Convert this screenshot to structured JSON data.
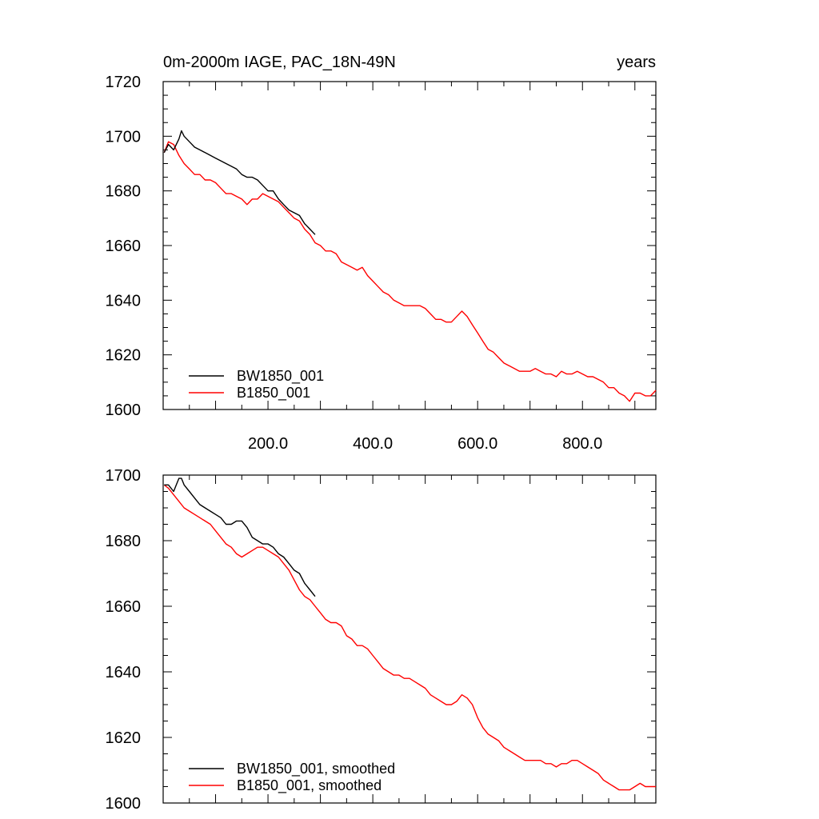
{
  "chart_data": [
    {
      "type": "line",
      "title": "0m-2000m IAGE, PAC_18N-49N",
      "units": "years",
      "xlim": [
        0,
        940
      ],
      "ylim": [
        1600,
        1720
      ],
      "xticks": [
        200,
        400,
        600,
        800
      ],
      "xtick_labels": [
        "200.0",
        "400.0",
        "600.0",
        "800.0"
      ],
      "yticks": [
        1600,
        1620,
        1640,
        1660,
        1680,
        1700,
        1720
      ],
      "ytick_labels": [
        "1600",
        "1620",
        "1640",
        "1660",
        "1680",
        "1700",
        "1720"
      ],
      "legend_position": "bottom-left",
      "series": [
        {
          "name": "BW1850_001",
          "color": "#000000",
          "x": [
            2,
            10,
            20,
            30,
            35,
            40,
            50,
            60,
            70,
            80,
            90,
            100,
            110,
            120,
            130,
            140,
            150,
            160,
            170,
            180,
            190,
            200,
            210,
            220,
            230,
            240,
            250,
            260,
            270,
            280,
            290
          ],
          "y": [
            1694,
            1697,
            1695,
            1699,
            1702,
            1700,
            1698,
            1696,
            1695,
            1694,
            1693,
            1692,
            1691,
            1690,
            1689,
            1688,
            1686,
            1685,
            1685,
            1684,
            1682,
            1680,
            1680,
            1677,
            1675,
            1673,
            1672,
            1671,
            1668,
            1666,
            1664
          ]
        },
        {
          "name": "B1850_001",
          "color": "#ff0000",
          "x": [
            2,
            10,
            20,
            30,
            40,
            50,
            60,
            70,
            80,
            90,
            100,
            110,
            120,
            130,
            140,
            150,
            160,
            170,
            180,
            190,
            200,
            210,
            220,
            230,
            240,
            250,
            260,
            270,
            280,
            290,
            300,
            310,
            320,
            330,
            340,
            350,
            360,
            370,
            380,
            390,
            400,
            410,
            420,
            430,
            440,
            450,
            460,
            470,
            480,
            490,
            500,
            510,
            520,
            530,
            540,
            550,
            560,
            570,
            580,
            590,
            600,
            610,
            620,
            630,
            640,
            650,
            660,
            670,
            680,
            690,
            700,
            710,
            720,
            730,
            740,
            750,
            760,
            770,
            780,
            790,
            800,
            810,
            820,
            830,
            840,
            850,
            860,
            870,
            880,
            890,
            900,
            910,
            920,
            930,
            940
          ],
          "y": [
            1694,
            1698,
            1697,
            1693,
            1690,
            1688,
            1686,
            1686,
            1684,
            1684,
            1683,
            1681,
            1679,
            1679,
            1678,
            1677,
            1675,
            1677,
            1677,
            1679,
            1678,
            1677,
            1676,
            1674,
            1672,
            1670,
            1669,
            1666,
            1664,
            1661,
            1660,
            1658,
            1658,
            1657,
            1654,
            1653,
            1652,
            1651,
            1652,
            1649,
            1647,
            1645,
            1643,
            1642,
            1640,
            1639,
            1638,
            1638,
            1638,
            1638,
            1637,
            1635,
            1633,
            1633,
            1632,
            1632,
            1634,
            1636,
            1634,
            1631,
            1628,
            1625,
            1622,
            1621,
            1619,
            1617,
            1616,
            1615,
            1614,
            1614,
            1614,
            1615,
            1614,
            1613,
            1613,
            1612,
            1614,
            1613,
            1613,
            1614,
            1613,
            1612,
            1612,
            1611,
            1610,
            1608,
            1608,
            1606,
            1605,
            1603,
            1606,
            1606,
            1605,
            1605,
            1607
          ]
        }
      ]
    },
    {
      "type": "line",
      "xlim": [
        0,
        940
      ],
      "ylim": [
        1600,
        1700
      ],
      "yticks": [
        1600,
        1620,
        1640,
        1660,
        1680,
        1700
      ],
      "ytick_labels": [
        "1600",
        "1620",
        "1640",
        "1660",
        "1680",
        "1700"
      ],
      "legend_position": "bottom-left",
      "series": [
        {
          "name": "BW1850_001, smoothed",
          "color": "#000000",
          "x": [
            2,
            10,
            20,
            25,
            30,
            35,
            40,
            50,
            60,
            70,
            80,
            90,
            100,
            110,
            120,
            130,
            140,
            150,
            160,
            170,
            180,
            190,
            200,
            210,
            220,
            230,
            240,
            250,
            260,
            270,
            280,
            290
          ],
          "y": [
            1697,
            1697,
            1695,
            1697,
            1699,
            1699,
            1697,
            1695,
            1693,
            1691,
            1690,
            1689,
            1688,
            1687,
            1685,
            1685,
            1686,
            1686,
            1684,
            1681,
            1680,
            1679,
            1679,
            1678,
            1676,
            1675,
            1673,
            1671,
            1670,
            1667,
            1665,
            1663
          ]
        },
        {
          "name": "B1850_001, smoothed",
          "color": "#ff0000",
          "x": [
            2,
            10,
            20,
            30,
            40,
            50,
            60,
            70,
            80,
            90,
            100,
            110,
            120,
            130,
            140,
            150,
            160,
            170,
            180,
            190,
            200,
            210,
            220,
            230,
            240,
            250,
            260,
            270,
            280,
            290,
            300,
            310,
            320,
            330,
            340,
            350,
            360,
            370,
            380,
            390,
            400,
            410,
            420,
            430,
            440,
            450,
            460,
            470,
            480,
            490,
            500,
            510,
            520,
            530,
            540,
            550,
            560,
            570,
            580,
            590,
            600,
            610,
            620,
            630,
            640,
            650,
            660,
            670,
            680,
            690,
            700,
            710,
            720,
            730,
            740,
            750,
            760,
            770,
            780,
            790,
            800,
            810,
            820,
            830,
            840,
            850,
            860,
            870,
            880,
            890,
            900,
            910,
            920,
            930,
            940
          ],
          "y": [
            1697,
            1696,
            1694,
            1692,
            1690,
            1689,
            1688,
            1687,
            1686,
            1685,
            1683,
            1681,
            1679,
            1678,
            1676,
            1675,
            1676,
            1677,
            1678,
            1678,
            1677,
            1676,
            1675,
            1673,
            1671,
            1668,
            1665,
            1663,
            1662,
            1660,
            1658,
            1656,
            1655,
            1655,
            1654,
            1651,
            1650,
            1648,
            1648,
            1647,
            1645,
            1643,
            1641,
            1640,
            1639,
            1639,
            1638,
            1638,
            1637,
            1636,
            1635,
            1633,
            1632,
            1631,
            1630,
            1630,
            1631,
            1633,
            1632,
            1630,
            1626,
            1623,
            1621,
            1620,
            1619,
            1617,
            1616,
            1615,
            1614,
            1613,
            1613,
            1613,
            1613,
            1612,
            1612,
            1611,
            1612,
            1612,
            1613,
            1613,
            1612,
            1611,
            1610,
            1609,
            1607,
            1606,
            1605,
            1604,
            1604,
            1604,
            1605,
            1606,
            1605,
            1605,
            1605
          ]
        }
      ]
    }
  ]
}
